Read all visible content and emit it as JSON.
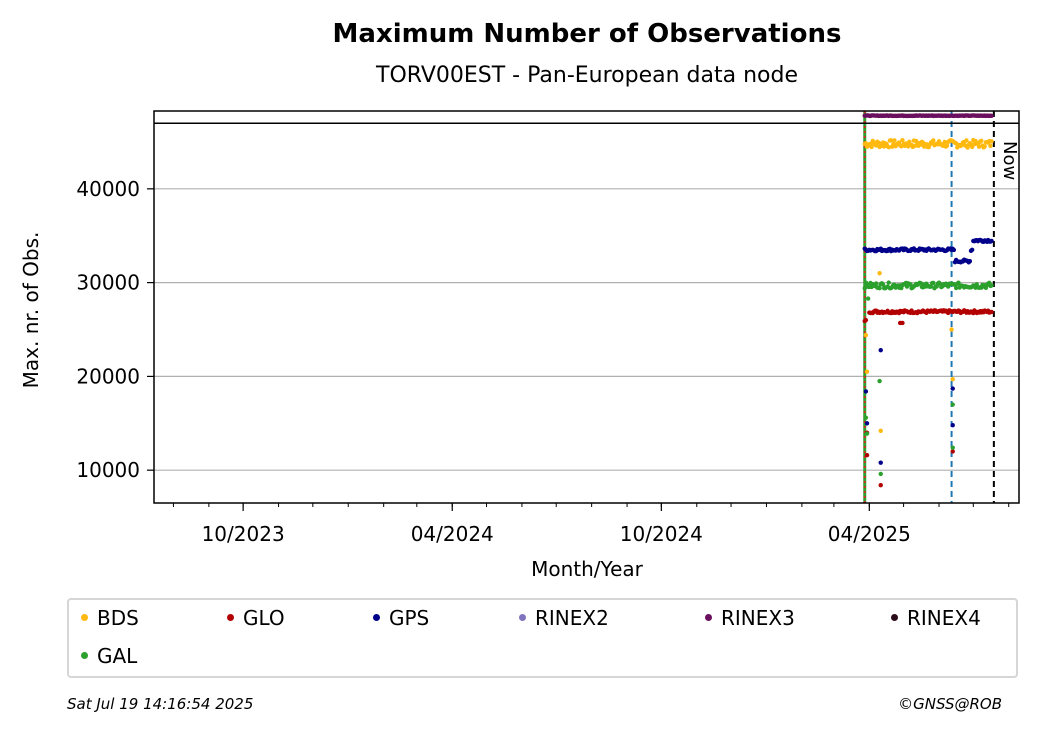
{
  "chart_data": {
    "type": "scatter",
    "title": "Maximum Number of Observations",
    "subtitle": "TORV00EST - Pan-European data node",
    "xlabel": "Month/Year",
    "ylabel": "Max. nr. of Obs.",
    "x_ticks": [
      "10/2023",
      "04/2024",
      "10/2024",
      "04/2025"
    ],
    "y_ticks": [
      "10000",
      "20000",
      "30000",
      "40000"
    ],
    "xlim": [
      "2023-07-15",
      "2025-08-10"
    ],
    "ylim": [
      6500,
      48300
    ],
    "grid": "y",
    "vlines": [
      {
        "x": "2025-03-28",
        "color": "#2ca02c",
        "style": "solid"
      },
      {
        "x": "2025-03-28",
        "color": "#d62728",
        "style": "dotted"
      },
      {
        "x": "2025-06-12",
        "color": "#1f77b4",
        "style": "dashed"
      },
      {
        "x": "2025-07-19",
        "color": "#000000",
        "style": "dashed",
        "label": "Now"
      }
    ],
    "hline": 47000,
    "legend_position": "bottom",
    "series": [
      {
        "name": "BDS",
        "color": "#ffb90f",
        "start": "2025-03-28",
        "end": "2025-07-17",
        "level": 44800,
        "jitter": 400,
        "outliers": [
          [
            "2025-03-29",
            24400
          ],
          [
            "2025-03-30",
            20500
          ],
          [
            "2025-04-10",
            31000
          ],
          [
            "2025-04-11",
            14200
          ],
          [
            "2025-06-12",
            25000
          ],
          [
            "2025-06-13",
            19700
          ]
        ]
      },
      {
        "name": "GLO",
        "color": "#b30000",
        "start": "2025-04-01",
        "end": "2025-07-17",
        "level": 26900,
        "jitter": 150,
        "outliers": [
          [
            "2025-03-28",
            25900
          ],
          [
            "2025-03-29",
            26000
          ],
          [
            "2025-03-30",
            11600
          ],
          [
            "2025-03-30",
            14000
          ],
          [
            "2025-04-11",
            8400
          ],
          [
            "2025-04-28",
            25700
          ],
          [
            "2025-04-30",
            25700
          ],
          [
            "2025-06-13",
            12000
          ]
        ]
      },
      {
        "name": "GPS",
        "color": "#00008b",
        "start": "2025-03-28",
        "end": "2025-07-17",
        "level": 33500,
        "jitter": 150,
        "segments": [
          [
            "2025-06-15",
            "2025-06-28",
            32300
          ],
          [
            "2025-07-01",
            "2025-07-17",
            34500
          ]
        ],
        "outliers": [
          [
            "2025-03-29",
            18400
          ],
          [
            "2025-03-30",
            15000
          ],
          [
            "2025-04-11",
            22800
          ],
          [
            "2025-04-11",
            10800
          ],
          [
            "2025-06-13",
            18700
          ],
          [
            "2025-06-13",
            14800
          ]
        ]
      },
      {
        "name": "RINEX2",
        "color": "#8074c0",
        "start": "",
        "end": "",
        "level": 0,
        "jitter": 0,
        "outliers": []
      },
      {
        "name": "RINEX3",
        "color": "#6a0f5e",
        "start": "2025-03-28",
        "end": "2025-07-17",
        "level": 47800,
        "jitter": 30,
        "outliers": []
      },
      {
        "name": "RINEX4",
        "color": "#2a0b1a",
        "start": "",
        "end": "",
        "level": 0,
        "jitter": 0,
        "outliers": []
      },
      {
        "name": "GAL",
        "color": "#2ca02c",
        "start": "2025-03-28",
        "end": "2025-07-17",
        "level": 29700,
        "jitter": 300,
        "outliers": [
          [
            "2025-03-29",
            15600
          ],
          [
            "2025-03-30",
            13900
          ],
          [
            "2025-03-31",
            28300
          ],
          [
            "2025-04-10",
            19500
          ],
          [
            "2025-04-11",
            9600
          ],
          [
            "2025-06-13",
            17000
          ],
          [
            "2025-06-13",
            12400
          ]
        ]
      }
    ]
  },
  "footer": {
    "timestamp": "Sat Jul 19 14:16:54 2025",
    "credit": "©GNSS@ROB"
  }
}
